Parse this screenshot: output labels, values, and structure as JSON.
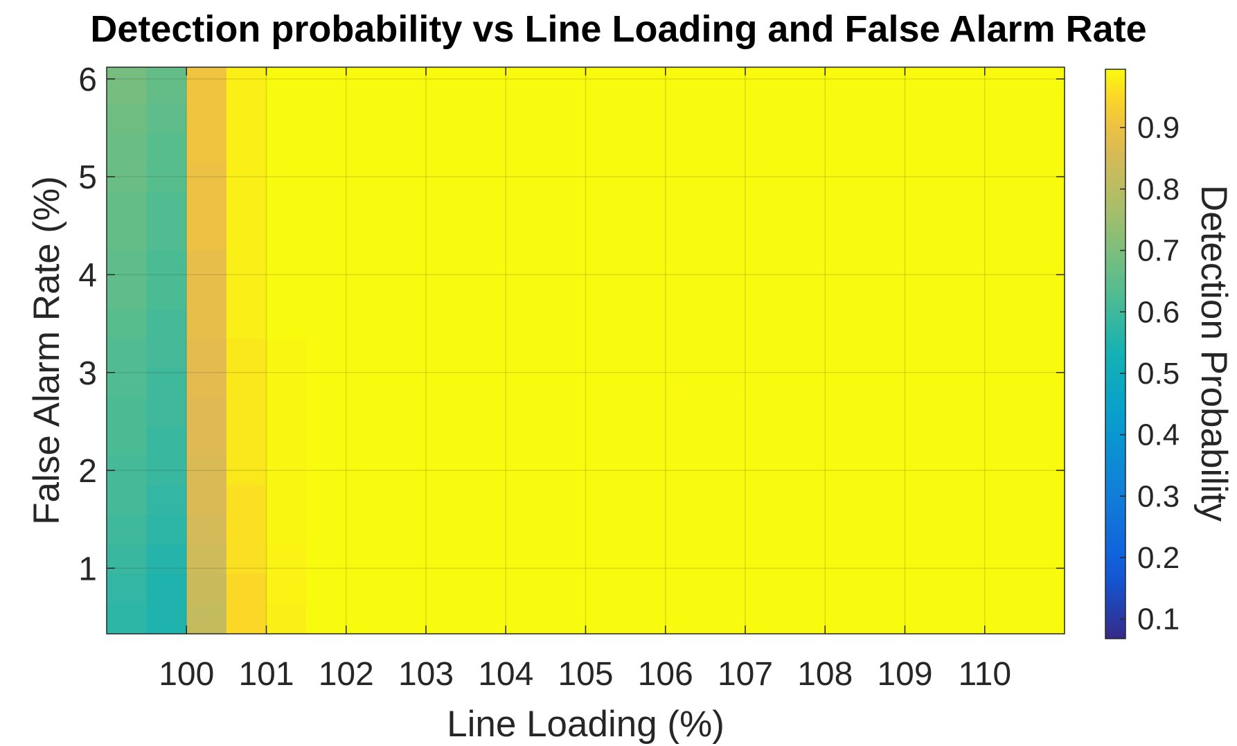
{
  "chart_data": {
    "type": "heatmap",
    "title": "Detection probability vs Line Loading and False Alarm Rate",
    "xlabel": "Line Loading (%)",
    "ylabel": "False Alarm Rate (%)",
    "colorbar_label": "Detection Probability",
    "colormap": "parula",
    "xlim": [
      99,
      111
    ],
    "ylim": [
      0.33,
      6.12
    ],
    "clim": [
      0.068,
      0.995
    ],
    "grid": true,
    "x_ticks": [
      "100",
      "101",
      "102",
      "103",
      "104",
      "105",
      "106",
      "107",
      "108",
      "109",
      "110"
    ],
    "y_ticks": [
      "1",
      "2",
      "3",
      "4",
      "5",
      "6"
    ],
    "colorbar_ticks": [
      "0.1",
      "0.2",
      "0.3",
      "0.4",
      "0.5",
      "0.6",
      "0.7",
      "0.8",
      "0.9"
    ],
    "x": [
      99.25,
      99.75,
      100.25,
      100.75,
      101.25,
      101.75,
      102.25,
      102.75,
      103.25,
      103.75,
      104.25,
      104.75,
      105.25,
      105.75,
      106.25,
      106.75,
      107.25,
      107.75,
      108.25,
      108.75,
      109.25,
      109.75,
      110.25,
      110.75
    ],
    "y": [
      0.5,
      0.8,
      1.1,
      1.4,
      1.7,
      2.0,
      2.3,
      2.6,
      2.9,
      3.2,
      3.5,
      3.8,
      4.1,
      4.4,
      4.7,
      5.0,
      5.3,
      5.6,
      5.9
    ],
    "columns": [
      {
        "x": 99.25,
        "values": [
          0.57,
          0.58,
          0.59,
          0.6,
          0.61,
          0.61,
          0.62,
          0.62,
          0.63,
          0.63,
          0.64,
          0.65,
          0.65,
          0.66,
          0.66,
          0.67,
          0.67,
          0.68,
          0.69
        ]
      },
      {
        "x": 99.75,
        "values": [
          0.55,
          0.55,
          0.56,
          0.57,
          0.58,
          0.59,
          0.59,
          0.6,
          0.6,
          0.61,
          0.61,
          0.62,
          0.62,
          0.63,
          0.63,
          0.64,
          0.64,
          0.65,
          0.66
        ]
      },
      {
        "x": 100.25,
        "values": [
          0.82,
          0.83,
          0.84,
          0.85,
          0.86,
          0.86,
          0.87,
          0.87,
          0.88,
          0.88,
          0.89,
          0.89,
          0.89,
          0.9,
          0.9,
          0.9,
          0.91,
          0.91,
          0.91
        ]
      },
      {
        "x": 100.75,
        "values": [
          0.95,
          0.95,
          0.96,
          0.96,
          0.96,
          0.97,
          0.97,
          0.97,
          0.97,
          0.97,
          0.98,
          0.98,
          0.98,
          0.98,
          0.98,
          0.98,
          0.98,
          0.98,
          0.98
        ]
      },
      {
        "x": 101.25,
        "values": [
          0.98,
          0.985,
          0.985,
          0.99,
          0.99,
          0.99,
          0.99,
          0.99,
          0.99,
          0.99,
          0.995,
          0.995,
          0.995,
          0.995,
          0.995,
          0.995,
          0.995,
          0.995,
          0.995
        ]
      }
    ],
    "remaining_columns_value": 0.995
  }
}
